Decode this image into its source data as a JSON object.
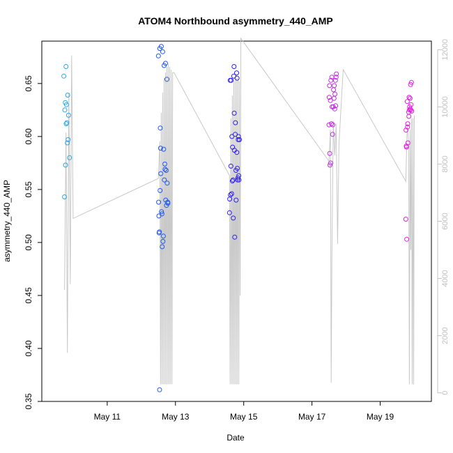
{
  "chart_data": {
    "type": "scatter",
    "title": "ATOM4 Northbound asymmetry_440_AMP",
    "xlabel": "Date",
    "ylabel": "asymmetry_440_AMP",
    "xlim": [
      "2021-05-09T02:00",
      "2021-05-20T12:00"
    ],
    "ylim": [
      0.35,
      0.69
    ],
    "y2lim": [
      -300,
      12300
    ],
    "x_ticks": [
      {
        "x": "2021-05-11T00:00",
        "label": "May 11"
      },
      {
        "x": "2021-05-13T00:00",
        "label": "May 13"
      },
      {
        "x": "2021-05-15T00:00",
        "label": "May 15"
      },
      {
        "x": "2021-05-17T00:00",
        "label": "May 17"
      },
      {
        "x": "2021-05-19T00:00",
        "label": "May 19"
      }
    ],
    "y_ticks": [
      "0.35",
      "0.40",
      "0.45",
      "0.50",
      "0.55",
      "0.60",
      "0.65"
    ],
    "y2_ticks": [
      "0",
      "2000",
      "4000",
      "6000",
      "8000",
      "10000",
      "12000"
    ],
    "grid": false,
    "colors": {
      "line": "#c8c8c8",
      "axis": "#000000",
      "axis2": "#c0c0c0",
      "series": [
        "#2aa7e8",
        "#1f57f2",
        "#2f20ee",
        "#c12ce3",
        "#e31fe0"
      ]
    },
    "line": {
      "name": "",
      "points": [
        [
          "2021-05-09T18:00",
          3600
        ],
        [
          "2021-05-09T19:00",
          9100
        ],
        [
          "2021-05-09T20:00",
          1400
        ],
        [
          "2021-05-09T21:00",
          10500
        ],
        [
          "2021-05-09T22:00",
          3800
        ],
        [
          "2021-05-09T23:00",
          11800
        ],
        [
          "2021-05-10T00:00",
          6100
        ],
        [
          "2021-05-12T12:00",
          7500
        ],
        [
          "2021-05-12T13:00",
          8800
        ],
        [
          "2021-05-12T13:30",
          300
        ],
        [
          "2021-05-12T14:00",
          9800
        ],
        [
          "2021-05-12T14:30",
          300
        ],
        [
          "2021-05-12T15:00",
          10500
        ],
        [
          "2021-05-12T15:30",
          300
        ],
        [
          "2021-05-12T16:00",
          11000
        ],
        [
          "2021-05-12T16:30",
          300
        ],
        [
          "2021-05-12T17:00",
          11200
        ],
        [
          "2021-05-12T17:30",
          300
        ],
        [
          "2021-05-12T18:00",
          11400
        ],
        [
          "2021-05-12T18:30",
          300
        ],
        [
          "2021-05-12T19:00",
          11500
        ],
        [
          "2021-05-12T19:30",
          300
        ],
        [
          "2021-05-12T20:00",
          11400
        ],
        [
          "2021-05-12T20:30",
          300
        ],
        [
          "2021-05-12T21:00",
          11300
        ],
        [
          "2021-05-12T21:30",
          300
        ],
        [
          "2021-05-12T22:00",
          11200
        ],
        [
          "2021-05-12T23:00",
          11200
        ],
        [
          "2021-05-14T14:00",
          7600
        ],
        [
          "2021-05-14T14:30",
          300
        ],
        [
          "2021-05-14T15:00",
          9600
        ],
        [
          "2021-05-14T15:30",
          300
        ],
        [
          "2021-05-14T16:00",
          10400
        ],
        [
          "2021-05-14T16:30",
          300
        ],
        [
          "2021-05-14T17:00",
          10900
        ],
        [
          "2021-05-14T17:30",
          300
        ],
        [
          "2021-05-14T18:00",
          11000
        ],
        [
          "2021-05-14T18:30",
          300
        ],
        [
          "2021-05-14T19:00",
          11000
        ],
        [
          "2021-05-14T19:30",
          300
        ],
        [
          "2021-05-14T20:00",
          11000
        ],
        [
          "2021-05-14T20:30",
          300
        ],
        [
          "2021-05-14T21:00",
          10900
        ],
        [
          "2021-05-14T21:30",
          3400
        ],
        [
          "2021-05-14T22:00",
          12400
        ],
        [
          "2021-05-17T12:00",
          8100
        ],
        [
          "2021-05-17T13:00",
          9200
        ],
        [
          "2021-05-17T13:30",
          350
        ],
        [
          "2021-05-17T14:00",
          4600
        ],
        [
          "2021-05-17T15:00",
          9500
        ],
        [
          "2021-05-17T16:00",
          8300
        ],
        [
          "2021-05-17T17:00",
          9400
        ],
        [
          "2021-05-17T18:00",
          5200
        ],
        [
          "2021-05-17T19:00",
          8700
        ],
        [
          "2021-05-17T21:00",
          10500
        ],
        [
          "2021-05-17T22:00",
          11300
        ],
        [
          "2021-05-19T18:00",
          7400
        ],
        [
          "2021-05-19T19:00",
          9400
        ],
        [
          "2021-05-19T20:00",
          8700
        ],
        [
          "2021-05-19T20:30",
          300
        ],
        [
          "2021-05-19T21:00",
          9200
        ],
        [
          "2021-05-19T21:30",
          5000
        ],
        [
          "2021-05-19T22:00",
          9600
        ],
        [
          "2021-05-19T22:30",
          300
        ],
        [
          "2021-05-19T23:00",
          9600
        ],
        [
          "2021-05-19T23:30",
          300
        ],
        [
          "2021-05-20T00:00",
          9700
        ]
      ]
    },
    "series": [
      {
        "name": "",
        "color_index": 0,
        "points": [
          [
            "2021-05-09T17:30",
            0.657
          ],
          [
            "2021-05-09T18:00",
            0.543
          ],
          [
            "2021-05-09T18:10",
            0.625
          ],
          [
            "2021-05-09T18:30",
            0.632
          ],
          [
            "2021-05-09T18:40",
            0.573
          ],
          [
            "2021-05-09T19:00",
            0.666
          ],
          [
            "2021-05-09T19:10",
            0.612
          ],
          [
            "2021-05-09T19:20",
            0.63
          ],
          [
            "2021-05-09T19:40",
            0.613
          ],
          [
            "2021-05-09T20:00",
            0.594
          ],
          [
            "2021-05-09T20:10",
            0.639
          ],
          [
            "2021-05-09T20:30",
            0.597
          ],
          [
            "2021-05-09T20:50",
            0.62
          ],
          [
            "2021-05-09T21:30",
            0.58
          ]
        ]
      },
      {
        "name": "",
        "color_index": 1,
        "points": [
          [
            "2021-05-12T12:00",
            0.676
          ],
          [
            "2021-05-12T12:10",
            0.538
          ],
          [
            "2021-05-12T12:20",
            0.525
          ],
          [
            "2021-05-12T12:30",
            0.509
          ],
          [
            "2021-05-12T12:40",
            0.51
          ],
          [
            "2021-05-12T12:50",
            0.361
          ],
          [
            "2021-05-12T13:00",
            0.683
          ],
          [
            "2021-05-12T13:10",
            0.549
          ],
          [
            "2021-05-12T13:20",
            0.608
          ],
          [
            "2021-05-12T13:30",
            0.589
          ],
          [
            "2021-05-12T13:40",
            0.565
          ],
          [
            "2021-05-12T14:00",
            0.685
          ],
          [
            "2021-05-12T14:10",
            0.529
          ],
          [
            "2021-05-12T14:30",
            0.527
          ],
          [
            "2021-05-12T14:40",
            0.496
          ],
          [
            "2021-05-12T15:00",
            0.68
          ],
          [
            "2021-05-12T15:10",
            0.501
          ],
          [
            "2021-05-12T15:30",
            0.506
          ],
          [
            "2021-05-12T15:40",
            0.588
          ],
          [
            "2021-05-12T16:00",
            0.667
          ],
          [
            "2021-05-12T16:10",
            0.559
          ],
          [
            "2021-05-12T16:30",
            0.574
          ],
          [
            "2021-05-12T16:40",
            0.569
          ],
          [
            "2021-05-12T17:00",
            0.669
          ],
          [
            "2021-05-12T17:10",
            0.54
          ],
          [
            "2021-05-12T17:30",
            0.568
          ],
          [
            "2021-05-12T17:40",
            0.535
          ],
          [
            "2021-05-12T18:00",
            0.654
          ],
          [
            "2021-05-12T18:10",
            0.556
          ],
          [
            "2021-05-12T18:30",
            0.538
          ],
          [
            "2021-05-12T18:40",
            0.537
          ]
        ]
      },
      {
        "name": "",
        "color_index": 2,
        "points": [
          [
            "2021-05-14T14:00",
            0.528
          ],
          [
            "2021-05-14T14:10",
            0.541
          ],
          [
            "2021-05-14T14:30",
            0.653
          ],
          [
            "2021-05-14T14:40",
            0.545
          ],
          [
            "2021-05-14T15:00",
            0.572
          ],
          [
            "2021-05-14T15:10",
            0.653
          ],
          [
            "2021-05-14T15:30",
            0.546
          ],
          [
            "2021-05-14T15:40",
            0.6
          ],
          [
            "2021-05-14T16:00",
            0.558
          ],
          [
            "2021-05-14T16:10",
            0.59
          ],
          [
            "2021-05-14T16:30",
            0.559
          ],
          [
            "2021-05-14T16:40",
            0.523
          ],
          [
            "2021-05-14T17:00",
            0.657
          ],
          [
            "2021-05-14T17:10",
            0.666
          ],
          [
            "2021-05-14T17:20",
            0.622
          ],
          [
            "2021-05-14T17:30",
            0.587
          ],
          [
            "2021-05-14T17:40",
            0.505
          ],
          [
            "2021-05-14T18:00",
            0.602
          ],
          [
            "2021-05-14T18:10",
            0.613
          ],
          [
            "2021-05-14T18:30",
            0.568
          ],
          [
            "2021-05-14T18:40",
            0.54
          ],
          [
            "2021-05-14T19:00",
            0.66
          ],
          [
            "2021-05-14T19:10",
            0.585
          ],
          [
            "2021-05-14T19:20",
            0.655
          ],
          [
            "2021-05-14T19:30",
            0.57
          ],
          [
            "2021-05-14T19:40",
            0.559
          ],
          [
            "2021-05-14T20:00",
            0.561
          ],
          [
            "2021-05-14T20:10",
            0.597
          ],
          [
            "2021-05-14T20:20",
            0.6
          ],
          [
            "2021-05-14T20:30",
            0.563
          ],
          [
            "2021-05-14T20:40",
            0.559
          ],
          [
            "2021-05-14T21:00",
            0.597
          ]
        ]
      },
      {
        "name": "",
        "color_index": 3,
        "points": [
          [
            "2021-05-17T12:00",
            0.611
          ],
          [
            "2021-05-17T12:10",
            0.637
          ],
          [
            "2021-05-17T12:20",
            0.648
          ],
          [
            "2021-05-17T12:30",
            0.584
          ],
          [
            "2021-05-17T12:40",
            0.573
          ],
          [
            "2021-05-17T13:00",
            0.634
          ],
          [
            "2021-05-17T13:10",
            0.575
          ],
          [
            "2021-05-17T13:20",
            0.653
          ],
          [
            "2021-05-17T13:40",
            0.612
          ],
          [
            "2021-05-17T14:00",
            0.656
          ],
          [
            "2021-05-17T14:10",
            0.628
          ],
          [
            "2021-05-17T14:30",
            0.602
          ],
          [
            "2021-05-17T14:40",
            0.611
          ],
          [
            "2021-05-17T15:00",
            0.628
          ],
          [
            "2021-05-17T15:10",
            0.644
          ],
          [
            "2021-05-17T15:30",
            0.636
          ],
          [
            "2021-05-17T15:40",
            0.648
          ],
          [
            "2021-05-17T16:00",
            0.626
          ],
          [
            "2021-05-17T16:10",
            0.64
          ],
          [
            "2021-05-17T16:30",
            0.653
          ],
          [
            "2021-05-17T16:40",
            0.629
          ],
          [
            "2021-05-17T17:00",
            0.656
          ],
          [
            "2021-05-17T17:10",
            0.659
          ]
        ]
      },
      {
        "name": "",
        "color_index": 4,
        "points": [
          [
            "2021-05-19T18:00",
            0.522
          ],
          [
            "2021-05-19T18:10",
            0.606
          ],
          [
            "2021-05-19T18:20",
            0.591
          ],
          [
            "2021-05-19T18:30",
            0.59
          ],
          [
            "2021-05-19T18:40",
            0.503
          ],
          [
            "2021-05-19T19:00",
            0.633
          ],
          [
            "2021-05-19T19:10",
            0.609
          ],
          [
            "2021-05-19T19:20",
            0.612
          ],
          [
            "2021-05-19T19:30",
            0.594
          ],
          [
            "2021-05-19T20:00",
            0.623
          ],
          [
            "2021-05-19T20:10",
            0.619
          ],
          [
            "2021-05-19T20:20",
            0.637
          ],
          [
            "2021-05-19T20:30",
            0.625
          ],
          [
            "2021-05-19T20:40",
            0.628
          ],
          [
            "2021-05-19T21:00",
            0.636
          ],
          [
            "2021-05-19T21:10",
            0.626
          ],
          [
            "2021-05-19T21:20",
            0.649
          ],
          [
            "2021-05-19T21:30",
            0.625
          ],
          [
            "2021-05-19T21:40",
            0.63
          ],
          [
            "2021-05-19T22:00",
            0.651
          ],
          [
            "2021-05-19T22:10",
            0.624
          ]
        ]
      }
    ]
  }
}
